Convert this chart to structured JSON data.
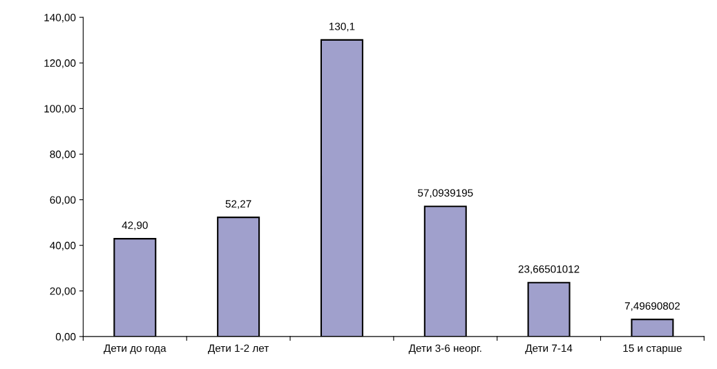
{
  "chart_data": {
    "type": "bar",
    "categories": [
      "Дети до года",
      "Дети 1-2 лет",
      null,
      "Дети 3-6 неорг.",
      "Дети 7-14",
      "15 и старше"
    ],
    "values": [
      42.9,
      52.27,
      130.1,
      57.0939195,
      23.66501012,
      7.49690802
    ],
    "value_labels": [
      "42,90",
      "52,27",
      "130,1",
      "57,0939195",
      "23,66501012",
      "7,49690802"
    ],
    "color": "#a0a0cc",
    "ylim": [
      0,
      140
    ],
    "yticks": [
      {
        "value": 0,
        "label": "0,00"
      },
      {
        "value": 20,
        "label": "20,00"
      },
      {
        "value": 40,
        "label": "40,00"
      },
      {
        "value": 60,
        "label": "60,00"
      },
      {
        "value": 80,
        "label": "80,00"
      },
      {
        "value": 100,
        "label": "100,00"
      },
      {
        "value": 120,
        "label": "120,00"
      },
      {
        "value": 140,
        "label": "140,00"
      }
    ],
    "grid": false,
    "legend": false
  }
}
